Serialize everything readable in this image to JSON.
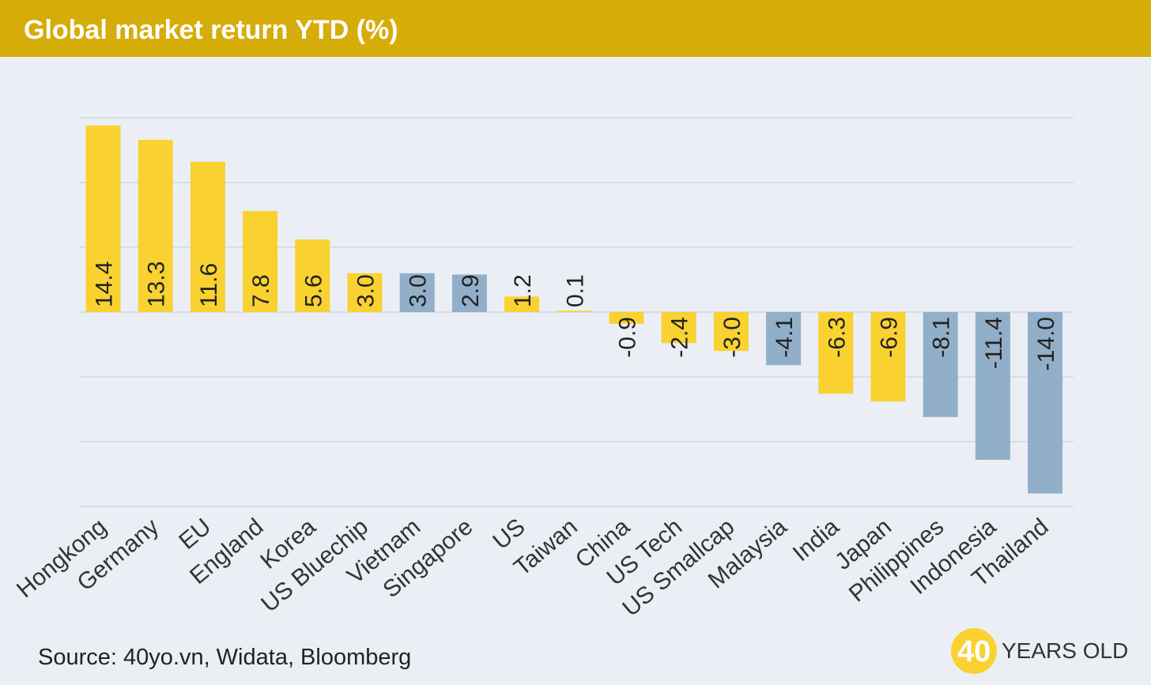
{
  "title": "Global market return YTD (%)",
  "source": "Source: 40yo.vn, Widata, Bloomberg",
  "logo": {
    "number": "40",
    "text": "YEARS OLD",
    "icon": "40-years-old-logo-icon"
  },
  "colors": {
    "header": "#d6ac08",
    "background": "#ebeff5",
    "highlight": "#f9d231",
    "other": "#91afc9",
    "grid": "#d6dde6"
  },
  "chart_data": {
    "type": "bar",
    "title": "Global market return YTD (%)",
    "xlabel": "",
    "ylabel": "",
    "ylim": [
      -15,
      15
    ],
    "grid": true,
    "legend": "none",
    "categories": [
      "Hongkong",
      "Germany",
      "EU",
      "England",
      "Korea",
      "US Bluechip",
      "Vietnam",
      "Singapore",
      "US",
      "Taiwan",
      "China",
      "US Tech",
      "US Smallcap",
      "Malaysia",
      "India",
      "Japan",
      "Philippines",
      "Indonesia",
      "Thailand"
    ],
    "values": [
      14.4,
      13.3,
      11.6,
      7.8,
      5.6,
      3.0,
      3.0,
      2.9,
      1.2,
      0.1,
      -0.9,
      -2.4,
      -3.0,
      -4.1,
      -6.3,
      -6.9,
      -8.1,
      -11.4,
      -14.0
    ],
    "value_labels": [
      "14.4",
      "13.3",
      "11.6",
      "7.8",
      "5.6",
      "3.0",
      "3.0",
      "2.9",
      "1.2",
      "0.1",
      "-0.9",
      "-2.4",
      "-3.0",
      "-4.1",
      "-6.3",
      "-6.9",
      "-8.1",
      "-11.4",
      "-14.0"
    ],
    "bar_colors": [
      "#f9d231",
      "#f9d231",
      "#f9d231",
      "#f9d231",
      "#f9d231",
      "#f9d231",
      "#91afc9",
      "#91afc9",
      "#f9d231",
      "#f9d231",
      "#f9d231",
      "#f9d231",
      "#f9d231",
      "#91afc9",
      "#f9d231",
      "#f9d231",
      "#91afc9",
      "#91afc9",
      "#91afc9"
    ]
  }
}
